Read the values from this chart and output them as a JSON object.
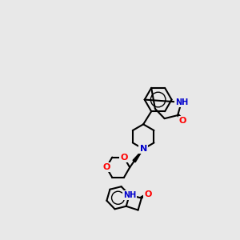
{
  "background_color": "#e8e8e8",
  "bond_color": "#000000",
  "atom_colors": {
    "O": "#ff0000",
    "N": "#0000cc",
    "H": "#555555",
    "C": "#000000"
  },
  "figsize": [
    3.0,
    3.0
  ],
  "dpi": 100
}
